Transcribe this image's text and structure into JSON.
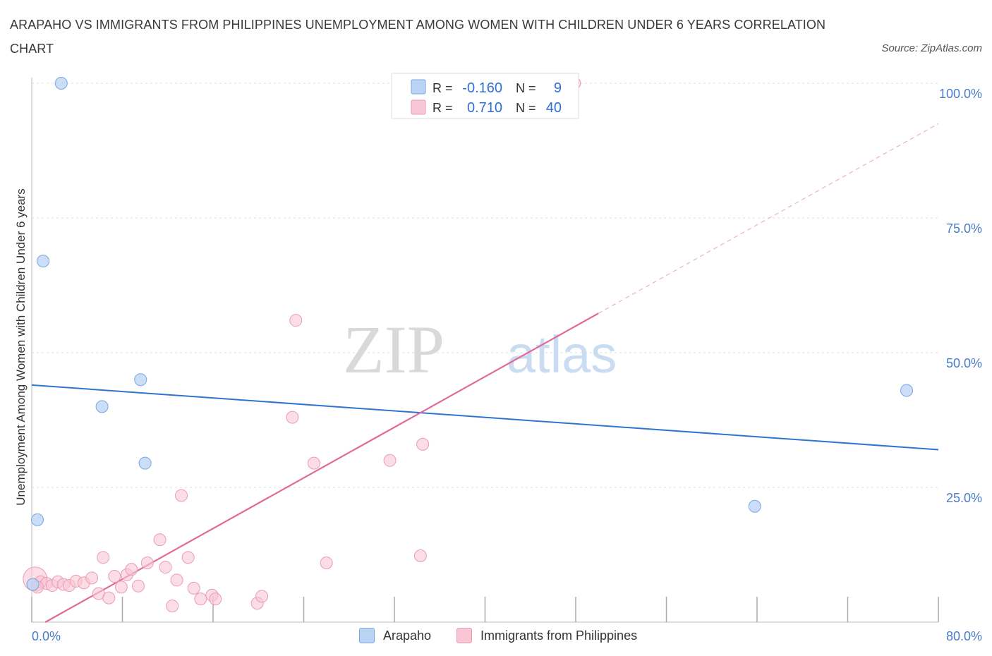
{
  "title": "ARAPAHO VS IMMIGRANTS FROM PHILIPPINES UNEMPLOYMENT AMONG WOMEN WITH CHILDREN UNDER 6 YEARS CORRELATION CHART",
  "source": "Source: ZipAtlas.com",
  "watermark": {
    "zip": "ZIP",
    "atlas": "atlas"
  },
  "colors": {
    "arapaho_fill": "#b9d3f5",
    "arapaho_stroke": "#7ba6de",
    "arapaho_line": "#2f74d0",
    "phil_fill": "#f9c6d5",
    "phil_stroke": "#ec9bb5",
    "phil_line": "#e26a98"
  },
  "legend": {
    "r_label": "R =",
    "n_label": "N =",
    "rows": [
      {
        "r": "-0.160",
        "n": "9"
      },
      {
        "r": "0.710",
        "n": "40"
      }
    ]
  },
  "bottom_legend": [
    "Arapaho",
    "Immigrants from Philippines"
  ],
  "chart_data": {
    "type": "scatter",
    "title": "ARAPAHO VS IMMIGRANTS FROM PHILIPPINES UNEMPLOYMENT AMONG WOMEN WITH CHILDREN UNDER 6 YEARS CORRELATION CHART",
    "xlabel": "",
    "ylabel": "Unemployment Among Women with Children Under 6 years",
    "xlim": [
      0,
      80
    ],
    "ylim": [
      0,
      100
    ],
    "x_tick_labels": [
      "0.0%",
      "80.0%"
    ],
    "y_ticks": [
      {
        "value": 100,
        "label": "100.0%"
      },
      {
        "value": 75,
        "label": "75.0%"
      },
      {
        "value": 50,
        "label": "50.0%"
      },
      {
        "value": 25,
        "label": "25.0%"
      }
    ],
    "series": [
      {
        "name": "Arapaho",
        "r": -0.16,
        "n": 9,
        "points": [
          {
            "x": 0.1,
            "y": 7.0
          },
          {
            "x": 0.5,
            "y": 19.0
          },
          {
            "x": 1.0,
            "y": 67.0
          },
          {
            "x": 2.6,
            "y": 100.0
          },
          {
            "x": 6.2,
            "y": 40.0
          },
          {
            "x": 9.6,
            "y": 45.0
          },
          {
            "x": 10.0,
            "y": 29.5
          },
          {
            "x": 63.8,
            "y": 21.5
          },
          {
            "x": 77.2,
            "y": 43.0
          }
        ],
        "trend": {
          "x1": 0,
          "y1": 44.0,
          "x2": 80,
          "y2": 32.0
        }
      },
      {
        "name": "Immigrants from Philippines",
        "r": 0.71,
        "n": 40,
        "points": [
          {
            "x": 0.3,
            "y": 8.0,
            "size": "large"
          },
          {
            "x": 0.8,
            "y": 7.5
          },
          {
            "x": 1.3,
            "y": 7.2
          },
          {
            "x": 1.8,
            "y": 6.8
          },
          {
            "x": 2.3,
            "y": 7.5
          },
          {
            "x": 2.8,
            "y": 7.0
          },
          {
            "x": 3.3,
            "y": 6.8
          },
          {
            "x": 3.9,
            "y": 7.6
          },
          {
            "x": 4.6,
            "y": 7.3
          },
          {
            "x": 5.3,
            "y": 8.2
          },
          {
            "x": 5.9,
            "y": 5.3
          },
          {
            "x": 6.3,
            "y": 12.0
          },
          {
            "x": 6.8,
            "y": 4.5
          },
          {
            "x": 7.3,
            "y": 8.5
          },
          {
            "x": 7.9,
            "y": 6.5
          },
          {
            "x": 8.4,
            "y": 8.8
          },
          {
            "x": 8.8,
            "y": 9.8
          },
          {
            "x": 9.4,
            "y": 6.7
          },
          {
            "x": 10.2,
            "y": 11.0
          },
          {
            "x": 11.3,
            "y": 15.3
          },
          {
            "x": 11.8,
            "y": 10.2
          },
          {
            "x": 12.4,
            "y": 3.0
          },
          {
            "x": 12.8,
            "y": 7.8
          },
          {
            "x": 13.2,
            "y": 23.5
          },
          {
            "x": 13.8,
            "y": 12.0
          },
          {
            "x": 14.3,
            "y": 6.3
          },
          {
            "x": 14.9,
            "y": 4.3
          },
          {
            "x": 15.9,
            "y": 5.0
          },
          {
            "x": 16.2,
            "y": 4.3
          },
          {
            "x": 19.9,
            "y": 3.5
          },
          {
            "x": 20.3,
            "y": 4.8
          },
          {
            "x": 23.0,
            "y": 38.0
          },
          {
            "x": 23.3,
            "y": 56.0
          },
          {
            "x": 24.9,
            "y": 29.5
          },
          {
            "x": 26.0,
            "y": 11.0
          },
          {
            "x": 31.6,
            "y": 30.0
          },
          {
            "x": 34.3,
            "y": 12.3
          },
          {
            "x": 34.5,
            "y": 33.0
          },
          {
            "x": 47.9,
            "y": 100.0
          },
          {
            "x": 0.5,
            "y": 6.5
          }
        ],
        "trend": {
          "x1": 1.2,
          "y1": 0,
          "x2": 50,
          "y2": 57.3,
          "dashed_to_x": 80,
          "dashed_to_y": 92.5
        }
      }
    ]
  }
}
